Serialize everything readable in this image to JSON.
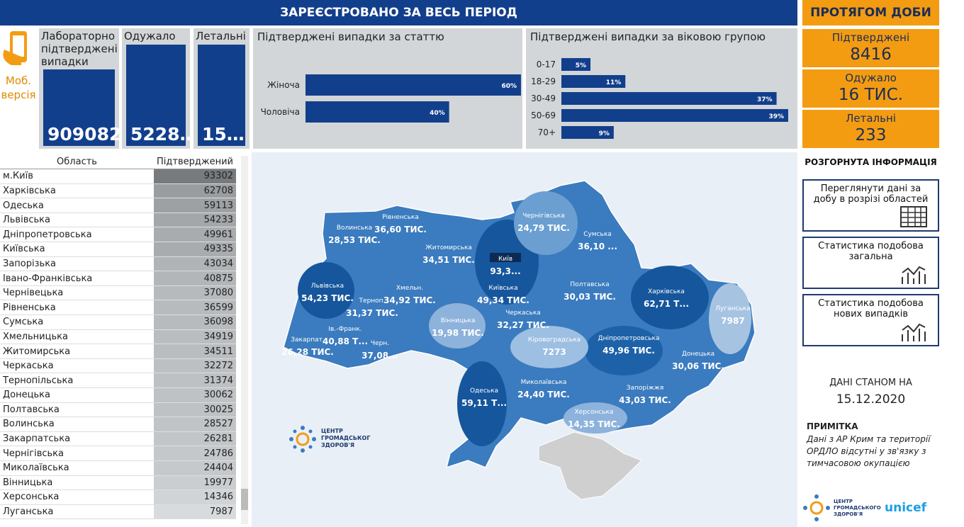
{
  "header": {
    "title": "ЗАРЕЄСТРОВАНО ЗА ВЕСЬ ПЕРІОД",
    "daily_title": "ПРОТЯГОМ ДОБИ"
  },
  "mobile": {
    "label": "Моб. версія"
  },
  "kpis": [
    {
      "label": "Лабораторно підтверджені випадки",
      "value": "909082"
    },
    {
      "label": "Одужало",
      "value": "5228…"
    },
    {
      "label": "Летальні",
      "value": "15…"
    }
  ],
  "gender_chart": {
    "title": "Підтверджені випадки за статтю",
    "categories": [
      "Жіноча",
      "Чоловіча"
    ],
    "values": [
      60,
      40
    ],
    "value_labels": [
      "60%",
      "40%"
    ],
    "color": "#123f8c"
  },
  "age_chart": {
    "title": "Підтверджені випадки за віковою групою",
    "categories": [
      "0-17",
      "18-29",
      "30-49",
      "50-69",
      "70+"
    ],
    "values": [
      5,
      11,
      37,
      39,
      9
    ],
    "value_labels": [
      "5%",
      "11%",
      "37%",
      "39%",
      "9%"
    ],
    "color": "#123f8c"
  },
  "daily": [
    {
      "label": "Підтверджені",
      "value": "8416"
    },
    {
      "label": "Одужало",
      "value": "16 ТИС."
    },
    {
      "label": "Летальні",
      "value": "233"
    }
  ],
  "table": {
    "columns": [
      "Область",
      "Підтверджений"
    ],
    "rows": [
      [
        "м.Київ",
        93302
      ],
      [
        "Харківська",
        62708
      ],
      [
        "Одеська",
        59113
      ],
      [
        "Львівська",
        54233
      ],
      [
        "Дніпропетровська",
        49961
      ],
      [
        "Київська",
        49335
      ],
      [
        "Запорізька",
        43034
      ],
      [
        "Івано-Франківська",
        40875
      ],
      [
        "Чернівецька",
        37080
      ],
      [
        "Рівненська",
        36599
      ],
      [
        "Сумська",
        36098
      ],
      [
        "Хмельницька",
        34919
      ],
      [
        "Житомирська",
        34511
      ],
      [
        "Черкаська",
        32272
      ],
      [
        "Тернопільська",
        31374
      ],
      [
        "Донецька",
        30062
      ],
      [
        "Полтавська",
        30025
      ],
      [
        "Волинська",
        28527
      ],
      [
        "Закарпатська",
        26281
      ],
      [
        "Чернігівська",
        24786
      ],
      [
        "Миколаївська",
        24404
      ],
      [
        "Вінницька",
        19977
      ],
      [
        "Херсонська",
        14346
      ],
      [
        "Луганська",
        7987
      ]
    ]
  },
  "map": {
    "regions": [
      {
        "name": "Волинська",
        "value": "28,53 ТИС."
      },
      {
        "name": "Рівненська",
        "value": "36,60 ТИС."
      },
      {
        "name": "Житомирська",
        "value": "34,51 ТИС."
      },
      {
        "name": "Київ",
        "value": "93,3..."
      },
      {
        "name": "Чернігівська",
        "value": "24,79 ТИС."
      },
      {
        "name": "Сумська",
        "value": "36,10 ..."
      },
      {
        "name": "Львівська",
        "value": "54,23 ТИС."
      },
      {
        "name": "Терноп.",
        "value": "31,37 ТИС."
      },
      {
        "name": "Хмельн.",
        "value": "34,92 ТИС."
      },
      {
        "name": "Київська",
        "value": "49,34 ТИС."
      },
      {
        "name": "Полтавська",
        "value": "30,03 ТИС."
      },
      {
        "name": "Харківська",
        "value": "62,71 Т..."
      },
      {
        "name": "Вінницька",
        "value": "19,98 ТИС."
      },
      {
        "name": "Черкаська",
        "value": "32,27 ТИС."
      },
      {
        "name": "Луганська",
        "value": "7987"
      },
      {
        "name": "Ів.-Франк.",
        "value": "40,88 Т..."
      },
      {
        "name": "Закарпат.",
        "value": "26,28 ТИС."
      },
      {
        "name": "Черн.",
        "value": "37,08..."
      },
      {
        "name": "Кіровоградська",
        "value": "7273"
      },
      {
        "name": "Дніпропетровська",
        "value": "49,96 ТИС."
      },
      {
        "name": "Донецька",
        "value": "30,06 ТИС."
      },
      {
        "name": "Одеська",
        "value": "59,11 Т..."
      },
      {
        "name": "Миколаївська",
        "value": "24,40 ТИС."
      },
      {
        "name": "Запоріжжя",
        "value": "43,03 ТИС."
      },
      {
        "name": "Херсонська",
        "value": "14,35 ТИС."
      }
    ]
  },
  "sidebar": {
    "title": "РОЗГОРНУТА ІНФОРМАЦІЯ",
    "buttons": [
      "Переглянути дані за добу в розрізі областей",
      "Статистика подобова загальна",
      "Статистика подобова нових випадків"
    ],
    "date_label": "ДАНІ СТАНОМ НА",
    "date": "15.12.2020",
    "note_title": "ПРИМІТКА",
    "note": "Дані з АР Крим та території ОРДЛО відсутні у зв'язку з тимчасовою окупацією"
  },
  "logos": {
    "center": "ЦЕНТР ГРОМАДСЬКОГО ЗДОРОВ'Я",
    "unicef": "unicef"
  }
}
